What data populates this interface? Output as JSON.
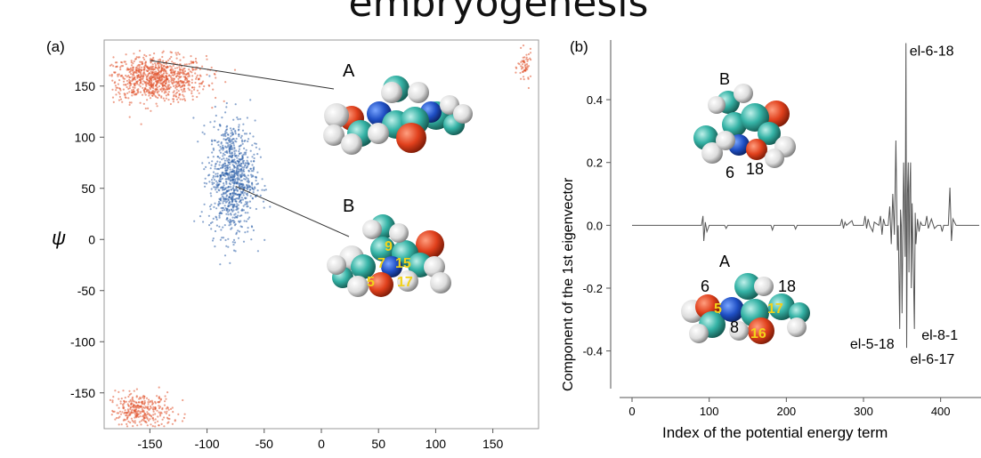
{
  "page": {
    "title": "embryogenesis"
  },
  "chart_data": [
    {
      "panel_label": "(a)",
      "type": "scatter",
      "xlabel": "",
      "ylabel": "ψ",
      "xlim": [
        -190,
        190
      ],
      "ylim": [
        -185,
        195
      ],
      "x_ticks": [
        -150,
        -100,
        -50,
        0,
        50,
        100,
        150
      ],
      "y_ticks": [
        150,
        100,
        50,
        0,
        -50,
        -100,
        -150
      ],
      "series": [
        {
          "color": "#e0522c",
          "clusters": [
            {
              "x": -145,
              "y": 157,
              "sx": 22,
              "sy": 11
            },
            {
              "x": -158,
              "y": -168,
              "sx": 14,
              "sy": 9
            },
            {
              "x": 178,
              "y": 168,
              "sx": 3,
              "sy": 8
            }
          ]
        },
        {
          "color": "#2b5fa8",
          "clusters": [
            {
              "x": -78,
              "y": 60,
              "sx": 10,
              "sy": 28
            }
          ]
        }
      ],
      "annotations": [
        {
          "label": "A",
          "target": [
            -150,
            175
          ]
        },
        {
          "label": "B",
          "target": [
            -75,
            52
          ]
        }
      ],
      "molecule_numbers": [
        "9",
        "7",
        "15",
        "5",
        "17"
      ]
    },
    {
      "panel_label": "(b)",
      "type": "line",
      "xlabel": "Index of the potential energy term",
      "ylabel": "Component of the 1st eigenvector",
      "xlim": [
        -15,
        450
      ],
      "ylim": [
        -0.52,
        0.59
      ],
      "x_ticks": [
        0,
        100,
        200,
        300,
        400
      ],
      "y_ticks": [
        "0.4",
        "0.2",
        "0.0",
        "-0.2",
        "-0.4"
      ],
      "y_tick_values": [
        0.4,
        0.2,
        0.0,
        -0.2,
        -0.4
      ],
      "points": [
        [
          0,
          0
        ],
        [
          90,
          0
        ],
        [
          92,
          0.03
        ],
        [
          93,
          -0.05
        ],
        [
          95,
          0.01
        ],
        [
          97,
          -0.02
        ],
        [
          100,
          0
        ],
        [
          120,
          0
        ],
        [
          122,
          -0.01
        ],
        [
          124,
          0
        ],
        [
          180,
          0
        ],
        [
          182,
          -0.015
        ],
        [
          184,
          0
        ],
        [
          210,
          0
        ],
        [
          212,
          -0.012
        ],
        [
          214,
          0
        ],
        [
          270,
          0
        ],
        [
          272,
          0.02
        ],
        [
          274,
          -0.01
        ],
        [
          276,
          0.01
        ],
        [
          278,
          0
        ],
        [
          285,
          0.015
        ],
        [
          287,
          0
        ],
        [
          300,
          0
        ],
        [
          302,
          0.03
        ],
        [
          304,
          -0.01
        ],
        [
          306,
          0.02
        ],
        [
          308,
          0
        ],
        [
          312,
          -0.02
        ],
        [
          314,
          0.01
        ],
        [
          320,
          0
        ],
        [
          322,
          0.03
        ],
        [
          324,
          -0.03
        ],
        [
          326,
          0.02
        ],
        [
          328,
          0
        ],
        [
          332,
          0
        ],
        [
          334,
          0.06
        ],
        [
          336,
          -0.06
        ],
        [
          338,
          0.1
        ],
        [
          340,
          -0.03
        ],
        [
          342,
          0.27
        ],
        [
          344,
          -0.08
        ],
        [
          345,
          0
        ],
        [
          347,
          -0.33
        ],
        [
          348,
          0.05
        ],
        [
          349,
          0
        ],
        [
          350,
          -0.28
        ],
        [
          352,
          0.2
        ],
        [
          354,
          -0.1
        ],
        [
          355,
          0.58
        ],
        [
          356,
          -0.39
        ],
        [
          357,
          0.1
        ],
        [
          358,
          0.2
        ],
        [
          359,
          -0.15
        ],
        [
          360,
          0.12
        ],
        [
          361,
          0.2
        ],
        [
          362,
          -0.2
        ],
        [
          363,
          0.07
        ],
        [
          364,
          -0.05
        ],
        [
          366,
          -0.33
        ],
        [
          367,
          0.04
        ],
        [
          368,
          -0.06
        ],
        [
          370,
          0.02
        ],
        [
          372,
          -0.02
        ],
        [
          374,
          0.01
        ],
        [
          376,
          0
        ],
        [
          380,
          0
        ],
        [
          382,
          0.03
        ],
        [
          384,
          -0.01
        ],
        [
          388,
          0.02
        ],
        [
          392,
          -0.01
        ],
        [
          396,
          0
        ],
        [
          400,
          0
        ],
        [
          402,
          -0.02
        ],
        [
          404,
          0
        ],
        [
          410,
          0
        ],
        [
          412,
          0.12
        ],
        [
          414,
          -0.05
        ],
        [
          416,
          0.02
        ],
        [
          420,
          0
        ],
        [
          450,
          0
        ]
      ],
      "annotations": [
        {
          "text": "el-6-18",
          "x": 355,
          "y": 0.58
        },
        {
          "text": "el-5-18",
          "x": 347,
          "y": -0.33
        },
        {
          "text": "el-8-1",
          "x": 366,
          "y": -0.33
        },
        {
          "text": "el-6-17",
          "x": 356,
          "y": -0.39
        }
      ],
      "molecule_B_numbers": [
        "6",
        "18"
      ],
      "molecule_A_numbers": [
        "6",
        "18",
        "5",
        "17",
        "8",
        "16"
      ],
      "molecule_labels": [
        "B",
        "A"
      ]
    }
  ]
}
